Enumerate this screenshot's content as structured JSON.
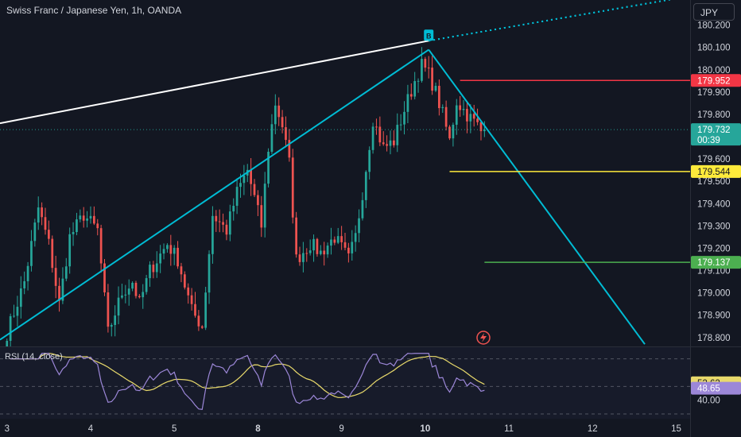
{
  "header": {
    "title": "Swiss Franc / Japanese Yen, 1h, OANDA",
    "currency": "JPY"
  },
  "colors": {
    "background": "#131722",
    "up": "#26a69a",
    "down": "#ef5350",
    "trendline": "#00bcd4",
    "resistance": "#f23645",
    "support_yellow": "#ffeb3b",
    "target_green": "#4caf50",
    "rsi_line": "#9c87d8",
    "rsi_ma": "#e8d96b"
  },
  "chart_data": [
    {
      "type": "candlestick",
      "symbol": "Swiss Franc / Japanese Yen",
      "interval": "1h",
      "source": "OANDA",
      "x_tick_labels": [
        "3",
        "4",
        "5",
        "8",
        "9",
        "10",
        "11",
        "12",
        "15"
      ],
      "x_tick_positions": [
        0,
        24,
        48,
        72,
        96,
        120,
        144,
        168,
        192
      ],
      "y_tick_labels": [
        "180.200",
        "180.100",
        "180.000",
        "179.900",
        "179.800",
        "179.700",
        "179.600",
        "179.500",
        "179.400",
        "179.300",
        "179.200",
        "179.100",
        "179.000",
        "178.900",
        "178.800"
      ],
      "ylim": [
        178.76,
        180.27
      ],
      "xlim": [
        -2,
        196
      ],
      "last_price": "179.732",
      "countdown": "00:39",
      "price_levels": [
        {
          "label": "179.952",
          "value": 179.952,
          "from_index": 130,
          "color": "#f23645"
        },
        {
          "label": "179.544",
          "value": 179.544,
          "from_index": 127,
          "color": "#ffeb3b"
        },
        {
          "label": "179.137",
          "value": 179.137,
          "from_index": 137,
          "color": "#4caf50"
        }
      ],
      "trendlines": [
        {
          "from": [
            -2,
            179.76
          ],
          "to": [
            121,
            180.13
          ],
          "style": "solid",
          "color": "#ffffff"
        },
        {
          "from": [
            121,
            180.13
          ],
          "to": [
            196,
            180.33
          ],
          "style": "dotted",
          "color": "#00bcd4"
        },
        {
          "from": [
            -2,
            178.79
          ],
          "to": [
            121,
            180.09
          ],
          "style": "solid",
          "color": "#00bcd4"
        },
        {
          "from": [
            121,
            180.09
          ],
          "to": [
            183,
            178.77
          ],
          "style": "solid",
          "color": "#00bcd4"
        }
      ],
      "marker": {
        "label": "B",
        "index": 121,
        "value": 180.13
      },
      "anchors": [
        [
          0,
          178.82
        ],
        [
          5,
          179.05
        ],
        [
          9,
          179.38
        ],
        [
          12,
          179.22
        ],
        [
          15,
          178.95
        ],
        [
          18,
          179.25
        ],
        [
          22,
          179.35
        ],
        [
          26,
          179.28
        ],
        [
          29,
          178.82
        ],
        [
          33,
          179.0
        ],
        [
          36,
          179.05
        ],
        [
          38,
          178.95
        ],
        [
          41,
          179.1
        ],
        [
          46,
          179.22
        ],
        [
          49,
          179.15
        ],
        [
          53,
          178.92
        ],
        [
          56,
          178.85
        ],
        [
          59,
          179.35
        ],
        [
          63,
          179.28
        ],
        [
          66,
          179.45
        ],
        [
          69,
          179.55
        ],
        [
          73,
          179.3
        ],
        [
          75,
          179.65
        ],
        [
          77,
          179.85
        ],
        [
          79,
          179.75
        ],
        [
          81,
          179.58
        ],
        [
          83,
          179.15
        ],
        [
          87,
          179.22
        ],
        [
          90,
          179.18
        ],
        [
          94,
          179.25
        ],
        [
          98,
          179.15
        ],
        [
          100,
          179.25
        ],
        [
          102,
          179.45
        ],
        [
          105,
          179.78
        ],
        [
          108,
          179.65
        ],
        [
          111,
          179.68
        ],
        [
          114,
          179.82
        ],
        [
          117,
          179.95
        ],
        [
          119,
          180.02
        ],
        [
          121,
          179.98
        ],
        [
          123,
          179.9
        ],
        [
          125,
          179.8
        ],
        [
          127,
          179.68
        ],
        [
          129,
          179.86
        ],
        [
          132,
          179.8
        ],
        [
          135,
          179.75
        ],
        [
          137,
          179.7
        ]
      ]
    },
    {
      "type": "line",
      "name": "RSI (14, close)",
      "ylim": [
        30,
        75
      ],
      "levels": [
        70,
        50,
        30
      ],
      "current_values": [
        "52.62",
        "48.65"
      ],
      "y_tick_labels": [
        "40.00"
      ]
    }
  ]
}
